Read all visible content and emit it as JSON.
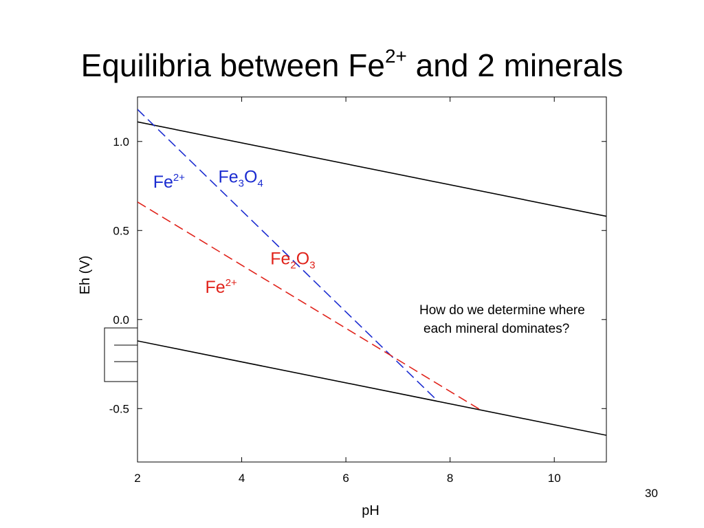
{
  "slide": {
    "title_main": "Equilibria between Fe",
    "title_sup": "2+",
    "title_rest": " and 2 minerals",
    "question_line1": "How do we determine where",
    "question_line2": "each mineral dominates?",
    "page_number": "30"
  },
  "chart_data": {
    "type": "line",
    "title": "",
    "xlabel": "pH",
    "ylabel": "Eh (V)",
    "xlim": [
      2,
      11
    ],
    "ylim": [
      -0.8,
      1.25
    ],
    "xticks": [
      2,
      4,
      6,
      8,
      10
    ],
    "xtick_labels": [
      "2",
      "4",
      "6",
      "8",
      "10"
    ],
    "yticks": [
      1.0,
      0.5,
      0.0,
      -0.5
    ],
    "ytick_labels": [
      "1.0",
      "0.5",
      "0.0",
      "-0.5"
    ],
    "grid": false,
    "series": [
      {
        "style": "solid",
        "color": "#000000",
        "points": [
          [
            2,
            1.11
          ],
          [
            11,
            0.58
          ]
        ]
      },
      {
        "style": "solid",
        "color": "#000000",
        "points": [
          [
            2,
            -0.12
          ],
          [
            11,
            -0.65
          ]
        ]
      },
      {
        "style": "dashed",
        "color": "#1a2bd0",
        "points": [
          [
            2,
            1.18
          ],
          [
            7.7,
            -0.44
          ]
        ]
      },
      {
        "style": "dashed",
        "color": "#e0221a",
        "points": [
          [
            2,
            0.66
          ],
          [
            8.6,
            -0.51
          ]
        ]
      }
    ],
    "annotations": [
      {
        "text": "Fe",
        "sup": "2+",
        "color": "#1a2bd0",
        "x": 2.3,
        "y": 0.74
      },
      {
        "text": "Fe",
        "sub1": "3",
        "text2": "O",
        "sub2": "4",
        "color": "#1a2bd0",
        "x": 3.55,
        "y": 0.77
      },
      {
        "text": "Fe",
        "sub1": "2",
        "text2": "O",
        "sub2": "3",
        "color": "#e0221a",
        "x": 4.55,
        "y": 0.31
      },
      {
        "text": "Fe",
        "sup": "2+",
        "color": "#e0221a",
        "x": 3.3,
        "y": 0.15
      }
    ]
  }
}
